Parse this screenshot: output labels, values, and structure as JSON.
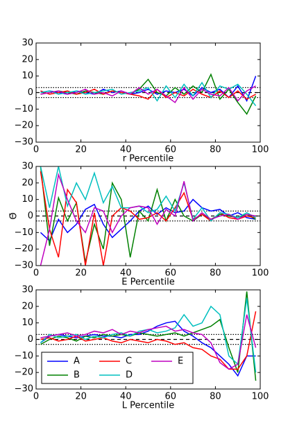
{
  "chart_data": [
    {
      "type": "line",
      "xlabel": "r Percentile",
      "x": [
        2,
        6,
        10,
        14,
        18,
        22,
        26,
        30,
        34,
        38,
        42,
        46,
        50,
        54,
        58,
        62,
        66,
        70,
        74,
        78,
        82,
        86,
        90,
        94,
        98
      ],
      "series": [
        {
          "name": "A",
          "color": "#0000ff",
          "values": [
            0,
            1,
            0,
            -1,
            1,
            0,
            -1,
            2,
            0,
            1,
            -1,
            0,
            2,
            -1,
            1,
            0,
            2,
            -2,
            3,
            0,
            2,
            -3,
            4,
            -5,
            10
          ]
        },
        {
          "name": "B",
          "color": "#008000",
          "values": [
            -1,
            0,
            1,
            0,
            -1,
            1,
            0,
            -1,
            1,
            0,
            -1,
            2,
            8,
            0,
            -2,
            3,
            -1,
            4,
            0,
            11,
            -4,
            2,
            -6,
            -13,
            -2
          ]
        },
        {
          "name": "C",
          "color": "#ff0000",
          "values": [
            1,
            -1,
            0,
            1,
            -1,
            0,
            2,
            -1,
            1,
            0,
            -1,
            -2,
            -4,
            2,
            -3,
            0,
            -2,
            2,
            -1,
            -3,
            1,
            -3,
            1,
            -4,
            -1
          ]
        },
        {
          "name": "D",
          "color": "#00bfbf",
          "values": [
            0,
            1,
            -1,
            0,
            1,
            -1,
            0,
            1,
            2,
            -1,
            0,
            1,
            3,
            -5,
            4,
            -3,
            5,
            -2,
            6,
            -3,
            4,
            2,
            5,
            -1,
            -8
          ]
        },
        {
          "name": "E",
          "color": "#bf00bf",
          "values": [
            -1,
            0,
            1,
            -1,
            0,
            2,
            -1,
            0,
            -2,
            1,
            -1,
            3,
            -1,
            2,
            -2,
            -6,
            3,
            -4,
            2,
            -1,
            -2,
            3,
            -5,
            1,
            4
          ]
        }
      ],
      "xlim": [
        0,
        100
      ],
      "xticks": [
        0,
        20,
        40,
        60,
        80,
        100
      ],
      "ylim": [
        -30,
        30
      ],
      "yticks": [
        {
          "value": -30,
          "label": "−30"
        },
        {
          "value": -20,
          "label": "−20"
        },
        {
          "value": -10,
          "label": "−10"
        },
        0,
        10,
        20,
        30
      ],
      "hlines": [
        {
          "value": 3,
          "style": "dotted"
        },
        {
          "value": -3,
          "style": "dotted"
        },
        {
          "value": 0,
          "style": "dashed"
        }
      ]
    },
    {
      "type": "line",
      "xlabel": "E Percentile",
      "ylabel": "Θ̄",
      "x": [
        2,
        6,
        10,
        14,
        18,
        22,
        26,
        30,
        34,
        38,
        42,
        46,
        50,
        54,
        58,
        62,
        66,
        70,
        74,
        78,
        82,
        86,
        90,
        94,
        98
      ],
      "series": [
        {
          "name": "A",
          "color": "#0000ff",
          "values": [
            -10,
            -15,
            -2,
            -10,
            -5,
            4,
            7,
            -5,
            -13,
            -8,
            -3,
            3,
            6,
            1,
            5,
            2,
            3,
            10,
            5,
            3,
            4,
            0,
            2,
            -1,
            -2
          ]
        },
        {
          "name": "B",
          "color": "#008000",
          "values": [
            30,
            -18,
            11,
            -3,
            8,
            -28,
            -5,
            -20,
            20,
            10,
            -25,
            3,
            -3,
            16,
            -3,
            10,
            0,
            -3,
            1,
            -2,
            1,
            0,
            -1,
            1,
            -2
          ]
        },
        {
          "name": "C",
          "color": "#ff0000",
          "values": [
            27,
            -8,
            -25,
            16,
            8,
            -30,
            2,
            -30,
            0,
            5,
            3,
            -2,
            -1,
            2,
            -3,
            5,
            14,
            -2,
            1,
            -3,
            2,
            -1,
            -2,
            0,
            -1
          ]
        },
        {
          "name": "D",
          "color": "#00bfbf",
          "values": [
            30,
            5,
            30,
            6,
            20,
            10,
            26,
            8,
            18,
            5,
            5,
            6,
            2,
            4,
            12,
            3,
            20,
            -2,
            5,
            -3,
            2,
            1,
            -1,
            2,
            -1
          ]
        },
        {
          "name": "E",
          "color": "#bf00bf",
          "values": [
            -30,
            -8,
            25,
            10,
            -3,
            -10,
            5,
            3,
            -10,
            0,
            5,
            6,
            5,
            -5,
            4,
            0,
            21,
            -3,
            2,
            -2,
            0,
            1,
            -2,
            1,
            0
          ]
        }
      ],
      "xlim": [
        0,
        100
      ],
      "xticks": [
        0,
        20,
        40,
        60,
        80,
        100
      ],
      "ylim": [
        -30,
        30
      ],
      "yticks": [
        {
          "value": -30,
          "label": "−30"
        },
        {
          "value": -20,
          "label": "−20"
        },
        {
          "value": -10,
          "label": "−10"
        },
        0,
        10,
        20,
        30
      ],
      "hlines": [
        {
          "value": 3,
          "style": "dotted"
        },
        {
          "value": -3,
          "style": "dotted"
        },
        {
          "value": 0,
          "style": "dashed"
        }
      ]
    },
    {
      "type": "line",
      "xlabel": "L Percentile",
      "legend": "lower left",
      "x": [
        2,
        6,
        10,
        14,
        18,
        22,
        26,
        30,
        34,
        38,
        42,
        46,
        50,
        54,
        58,
        62,
        66,
        70,
        74,
        78,
        82,
        86,
        90,
        94,
        98
      ],
      "series": [
        {
          "name": "A",
          "color": "#0000ff",
          "values": [
            -2,
            2,
            3,
            2,
            1,
            2,
            3,
            2,
            2,
            1,
            3,
            3,
            5,
            8,
            10,
            11,
            5,
            2,
            -2,
            -5,
            -10,
            -15,
            -22,
            -10,
            -10
          ]
        },
        {
          "name": "B",
          "color": "#008000",
          "values": [
            -3,
            0,
            2,
            1,
            -1,
            2,
            1,
            3,
            2,
            3,
            2,
            4,
            3,
            2,
            3,
            4,
            2,
            4,
            6,
            8,
            12,
            -5,
            -20,
            29,
            -25
          ]
        },
        {
          "name": "C",
          "color": "#ff0000",
          "values": [
            0,
            1,
            -1,
            0,
            2,
            -1,
            0,
            1,
            -1,
            -2,
            0,
            -1,
            -2,
            0,
            -1,
            -3,
            -2,
            -5,
            -6,
            -10,
            -12,
            -18,
            -18,
            -10,
            17
          ]
        },
        {
          "name": "D",
          "color": "#00bfbf",
          "values": [
            -2,
            3,
            1,
            2,
            3,
            0,
            2,
            1,
            3,
            4,
            2,
            5,
            6,
            4,
            5,
            7,
            15,
            8,
            10,
            20,
            15,
            -10,
            -15,
            25,
            -20
          ]
        },
        {
          "name": "E",
          "color": "#bf00bf",
          "values": [
            1,
            2,
            3,
            4,
            2,
            3,
            5,
            4,
            6,
            3,
            5,
            4,
            6,
            7,
            8,
            5,
            6,
            4,
            3,
            -2,
            -14,
            -18,
            -15,
            15,
            -5
          ]
        }
      ],
      "xlim": [
        0,
        100
      ],
      "xticks": [
        0,
        20,
        40,
        60,
        80,
        100
      ],
      "ylim": [
        -30,
        30
      ],
      "yticks": [
        {
          "value": -30,
          "label": "−30"
        },
        {
          "value": -20,
          "label": "−20"
        },
        {
          "value": -10,
          "label": "−10"
        },
        0,
        10,
        20,
        30
      ],
      "hlines": [
        {
          "value": 3,
          "style": "dotted"
        },
        {
          "value": -3,
          "style": "dotted"
        },
        {
          "value": 0,
          "style": "dashed"
        }
      ]
    }
  ]
}
